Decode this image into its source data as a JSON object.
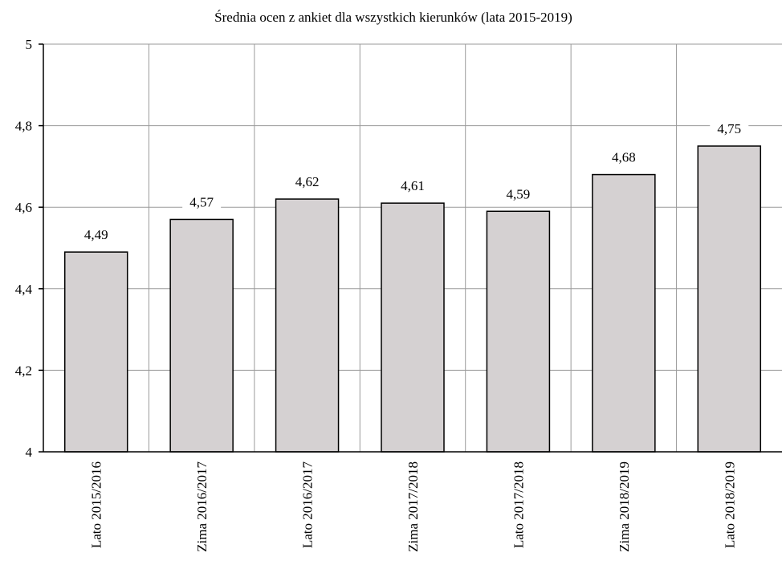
{
  "chart_data": {
    "type": "bar",
    "title": "Średnia ocen z ankiet dla wszystkich kierunków (lata 2015-2019)",
    "xlabel": "",
    "ylabel": "",
    "categories": [
      "Lato 2015/2016",
      "Zima 2016/2017",
      "Lato 2016/2017",
      "Zima 2017/2018",
      "Lato 2017/2018",
      "Zima 2018/2019",
      "Lato 2018/2019"
    ],
    "values": [
      4.49,
      4.57,
      4.62,
      4.61,
      4.59,
      4.68,
      4.75
    ],
    "value_labels": [
      "4,49",
      "4,57",
      "4,62",
      "4,61",
      "4,59",
      "4,68",
      "4,75"
    ],
    "ylim": [
      4,
      5
    ],
    "yticks": [
      4,
      4.2,
      4.4,
      4.6,
      4.8,
      5
    ],
    "ytick_labels": [
      "4",
      "4,2",
      "4,4",
      "4,6",
      "4,8",
      "5"
    ],
    "grid": true,
    "legend": "none",
    "colors": {
      "bar_fill": "#d5d1d2",
      "bar_stroke": "#000000",
      "grid": "#9a9a9a"
    }
  }
}
